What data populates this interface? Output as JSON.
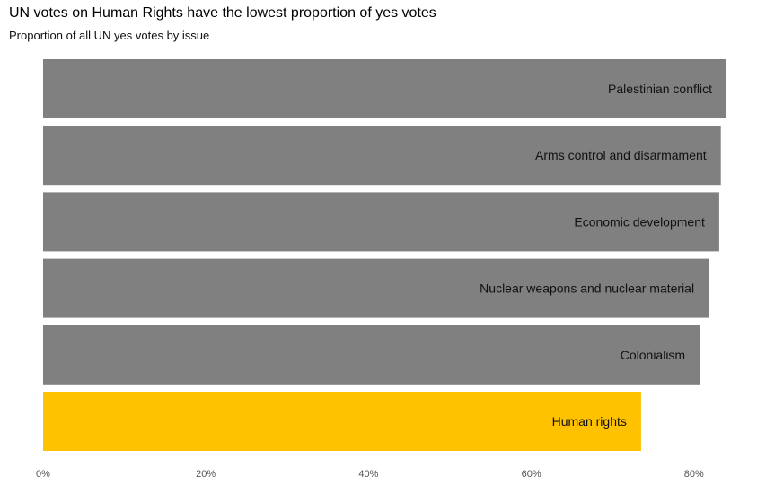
{
  "header": {
    "title": "UN votes on Human Rights have the lowest proportion of yes votes",
    "subtitle": "Proportion of all UN yes votes by issue"
  },
  "chart_data": {
    "type": "bar",
    "orientation": "horizontal",
    "title": "UN votes on Human Rights have the lowest proportion of yes votes",
    "subtitle": "Proportion of all UN yes votes by issue",
    "xlabel": "",
    "ylabel": "",
    "xlim": [
      0,
      0.84
    ],
    "x_ticks": [
      0,
      0.2,
      0.4,
      0.6,
      0.8
    ],
    "x_tick_labels": [
      "0%",
      "20%",
      "40%",
      "60%",
      "80%"
    ],
    "grid": false,
    "legend": "none",
    "categories": [
      "Palestinian conflict",
      "Arms control and disarmament",
      "Economic development",
      "Nuclear weapons and nuclear material",
      "Colonialism",
      "Human rights"
    ],
    "values": [
      0.84,
      0.833,
      0.831,
      0.818,
      0.807,
      0.735
    ],
    "colors": [
      "#808080",
      "#808080",
      "#808080",
      "#808080",
      "#808080",
      "#FFC200"
    ],
    "highlight": "Human rights"
  }
}
